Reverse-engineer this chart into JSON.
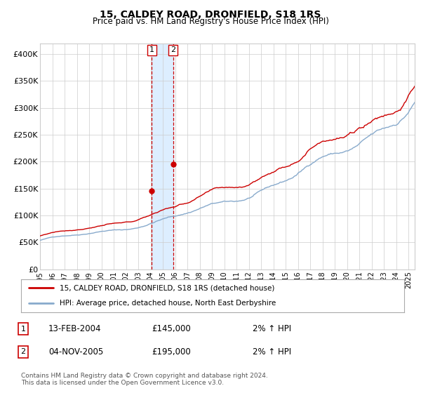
{
  "title": "15, CALDEY ROAD, DRONFIELD, S18 1RS",
  "subtitle": "Price paid vs. HM Land Registry's House Price Index (HPI)",
  "xlim_start": 1995.0,
  "xlim_end": 2025.5,
  "ylim": [
    0,
    420000
  ],
  "yticks": [
    0,
    50000,
    100000,
    150000,
    200000,
    250000,
    300000,
    350000,
    400000
  ],
  "ytick_labels": [
    "£0",
    "£50K",
    "£100K",
    "£150K",
    "£200K",
    "£250K",
    "£300K",
    "£350K",
    "£400K"
  ],
  "purchase1_date": 2004.11,
  "purchase1_price": 145000,
  "purchase2_date": 2005.84,
  "purchase2_price": 195000,
  "purchase1_label": "13-FEB-2004",
  "purchase1_price_label": "£145,000",
  "purchase1_hpi": "2% ↑ HPI",
  "purchase2_label": "04-NOV-2005",
  "purchase2_price_label": "£195,000",
  "purchase2_hpi": "2% ↑ HPI",
  "line_red_color": "#cc0000",
  "line_blue_color": "#88aacc",
  "highlight_color": "#ddeeff",
  "dot_color": "#cc0000",
  "grid_color": "#cccccc",
  "legend_label_red": "15, CALDEY ROAD, DRONFIELD, S18 1RS (detached house)",
  "legend_label_blue": "HPI: Average price, detached house, North East Derbyshire",
  "footnote": "Contains HM Land Registry data © Crown copyright and database right 2024.\nThis data is licensed under the Open Government Licence v3.0.",
  "box_color": "#cc0000",
  "background_color": "#ffffff",
  "plot_background": "#ffffff"
}
